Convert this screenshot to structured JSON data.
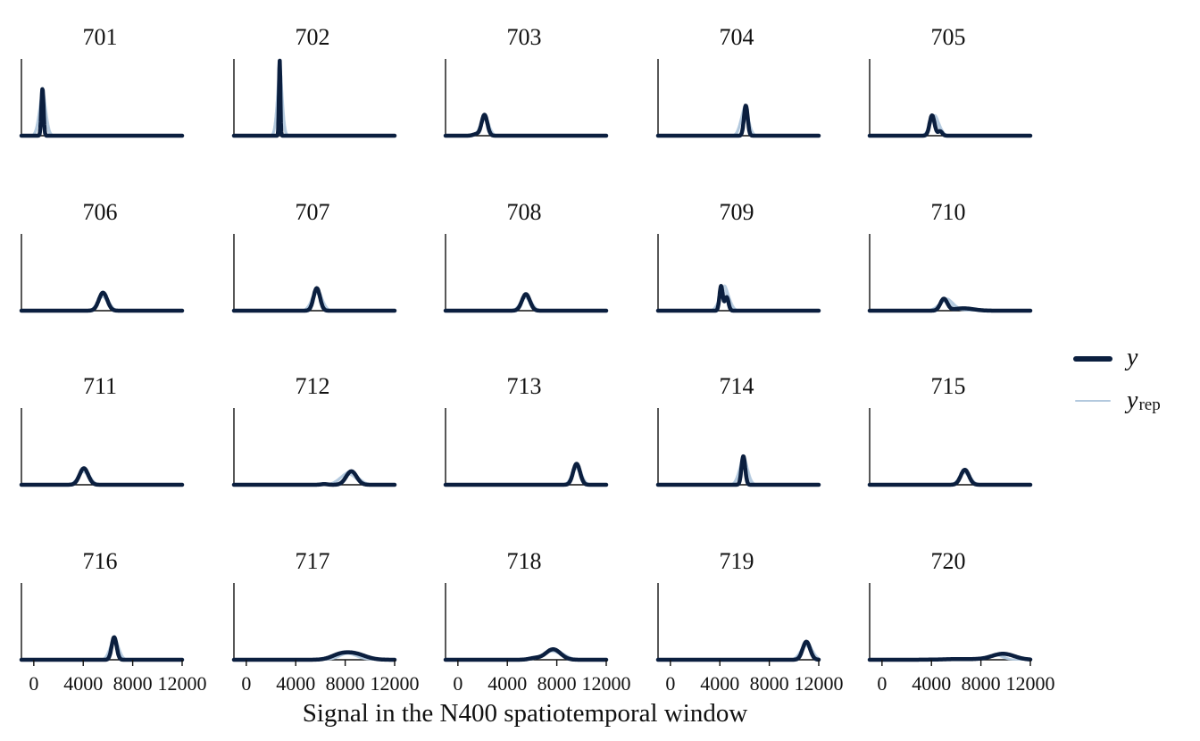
{
  "chart_data": {
    "type": "line",
    "title": "",
    "xlabel": "Signal in the N400 spatiotemporal window",
    "ylabel": "",
    "xlim": [
      -1000,
      12000
    ],
    "xticks": [
      0,
      4000,
      8000,
      12000
    ],
    "xtick_labels": [
      "0",
      "4000",
      "8000",
      "12000"
    ],
    "y_axis_shown": false,
    "grid": false,
    "legend": {
      "placement": "right",
      "entries": [
        {
          "key": "y",
          "label": "y",
          "subscript": "",
          "color": "#0b1f3f"
        },
        {
          "key": "yrep",
          "label": "y",
          "subscript": "rep",
          "color": "#b3c9de"
        }
      ]
    },
    "panels": [
      {
        "title": "701",
        "y": [
          {
            "m": 700,
            "s": 90,
            "w": 1.0
          }
        ],
        "yrep": {
          "m": 700,
          "s": 260
        },
        "h": 0.62
      },
      {
        "title": "702",
        "y": [
          {
            "m": 2700,
            "s": 55,
            "w": 1.0
          }
        ],
        "yrep": {
          "m": 2700,
          "s": 200
        },
        "h": 1.0
      },
      {
        "title": "703",
        "y": [
          {
            "m": 2150,
            "s": 230,
            "w": 1.0
          },
          {
            "m": 1500,
            "s": 250,
            "w": 0.08
          }
        ],
        "yrep": {
          "m": 2150,
          "s": 320
        },
        "h": 0.28
      },
      {
        "title": "704",
        "y": [
          {
            "m": 6100,
            "s": 150,
            "w": 1.0
          }
        ],
        "yrep": {
          "m": 6000,
          "s": 300
        },
        "h": 0.4
      },
      {
        "title": "705",
        "y": [
          {
            "m": 4050,
            "s": 200,
            "w": 1.0
          },
          {
            "m": 4700,
            "s": 170,
            "w": 0.22
          }
        ],
        "yrep": {
          "m": 4250,
          "s": 360
        },
        "h": 0.27
      },
      {
        "title": "706",
        "y": [
          {
            "m": 5600,
            "s": 340,
            "w": 1.0
          }
        ],
        "yrep": {
          "m": 5600,
          "s": 400
        },
        "h": 0.24
      },
      {
        "title": "707",
        "y": [
          {
            "m": 5700,
            "s": 260,
            "w": 1.0
          }
        ],
        "yrep": {
          "m": 5700,
          "s": 380
        },
        "h": 0.3
      },
      {
        "title": "708",
        "y": [
          {
            "m": 5500,
            "s": 320,
            "w": 1.0
          }
        ],
        "yrep": {
          "m": 5500,
          "s": 400
        },
        "h": 0.22
      },
      {
        "title": "709",
        "y": [
          {
            "m": 4100,
            "s": 130,
            "w": 1.0
          },
          {
            "m": 4550,
            "s": 150,
            "w": 0.55
          }
        ],
        "yrep": {
          "m": 4350,
          "s": 360
        },
        "h": 0.33
      },
      {
        "title": "710",
        "y": [
          {
            "m": 5000,
            "s": 280,
            "w": 1.0
          },
          {
            "m": 6600,
            "s": 800,
            "w": 0.2
          }
        ],
        "yrep": {
          "m": 5200,
          "s": 550
        },
        "h": 0.16
      },
      {
        "title": "711",
        "y": [
          {
            "m": 4050,
            "s": 350,
            "w": 1.0
          }
        ],
        "yrep": {
          "m": 4050,
          "s": 420
        },
        "h": 0.22
      },
      {
        "title": "712",
        "y": [
          {
            "m": 8500,
            "s": 420,
            "w": 1.0
          },
          {
            "m": 6300,
            "s": 250,
            "w": 0.05
          }
        ],
        "yrep": {
          "m": 8300,
          "s": 650
        },
        "h": 0.18
      },
      {
        "title": "713",
        "y": [
          {
            "m": 9600,
            "s": 280,
            "w": 1.0
          }
        ],
        "yrep": {
          "m": 9600,
          "s": 350
        },
        "h": 0.28
      },
      {
        "title": "714",
        "y": [
          {
            "m": 5900,
            "s": 150,
            "w": 1.0
          }
        ],
        "yrep": {
          "m": 5900,
          "s": 320
        },
        "h": 0.38
      },
      {
        "title": "715",
        "y": [
          {
            "m": 6700,
            "s": 330,
            "w": 1.0
          }
        ],
        "yrep": {
          "m": 6700,
          "s": 400
        },
        "h": 0.2
      },
      {
        "title": "716",
        "y": [
          {
            "m": 6500,
            "s": 200,
            "w": 1.0
          }
        ],
        "yrep": {
          "m": 6500,
          "s": 330
        },
        "h": 0.3
      },
      {
        "title": "717",
        "y": [
          {
            "m": 8700,
            "s": 900,
            "w": 1.0
          },
          {
            "m": 7500,
            "s": 700,
            "w": 0.6
          }
        ],
        "yrep": {
          "m": 8300,
          "s": 700
        },
        "h": 0.1
      },
      {
        "title": "718",
        "y": [
          {
            "m": 7700,
            "s": 600,
            "w": 1.0
          },
          {
            "m": 6200,
            "s": 450,
            "w": 0.15
          }
        ],
        "yrep": {
          "m": 7700,
          "s": 750
        },
        "h": 0.14
      },
      {
        "title": "719",
        "y": [
          {
            "m": 11000,
            "s": 300,
            "w": 1.0
          }
        ],
        "yrep": {
          "m": 11000,
          "s": 420
        },
        "h": 0.24
      },
      {
        "title": "720",
        "y": [
          {
            "m": 9800,
            "s": 900,
            "w": 1.0
          },
          {
            "m": 6500,
            "s": 1500,
            "w": 0.12
          }
        ],
        "yrep": {
          "m": 9200,
          "s": 550
        },
        "h": 0.08
      }
    ]
  }
}
